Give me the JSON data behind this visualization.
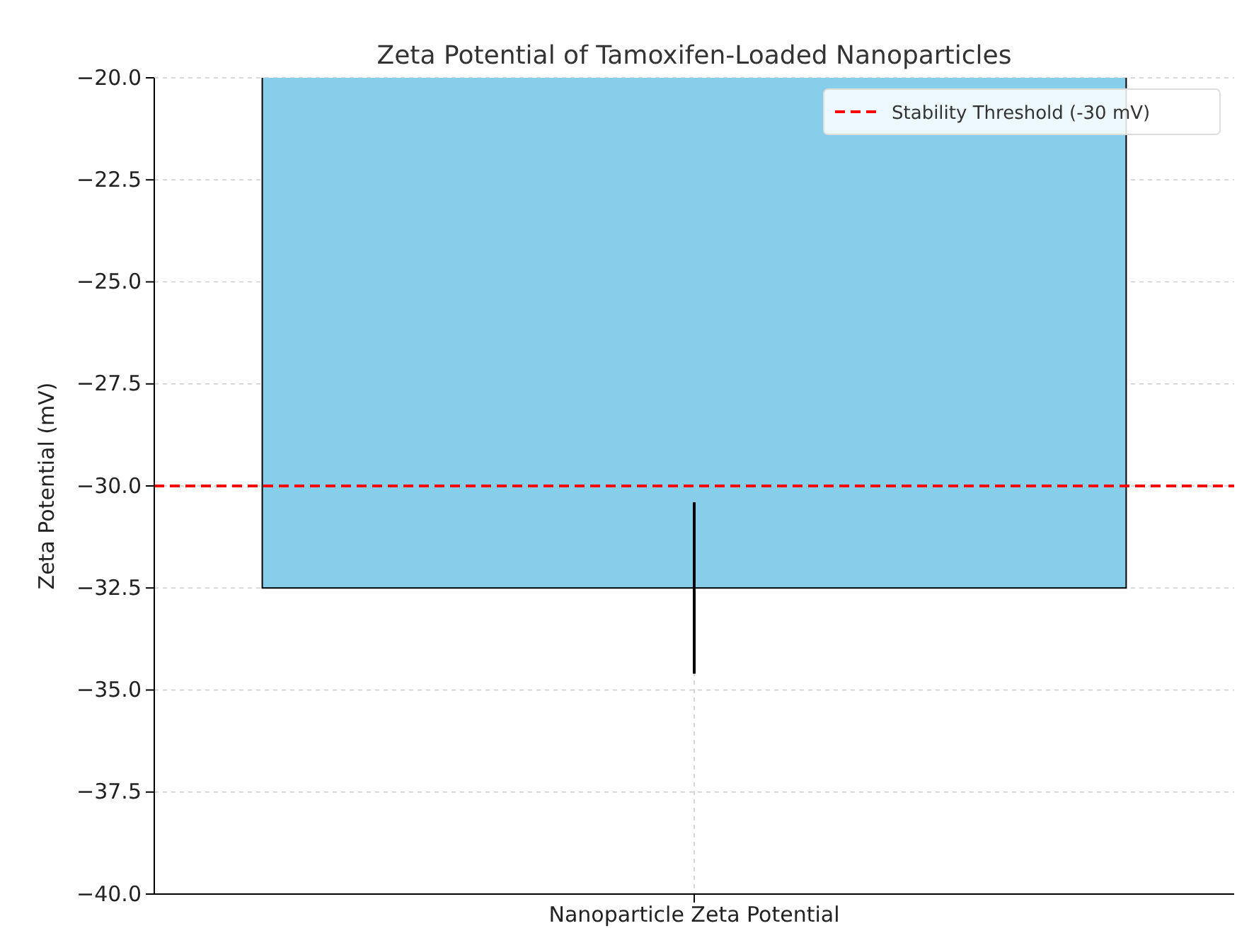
{
  "chart_data": {
    "type": "bar",
    "title": "Zeta Potential of Tamoxifen-Loaded Nanoparticles",
    "ylabel": "Zeta Potential (mV)",
    "categories": [
      "Nanoparticle Zeta Potential"
    ],
    "values": [
      -32.5
    ],
    "errors": [
      2.1
    ],
    "color": "#87ceeb",
    "ylim": [
      -40,
      -20
    ],
    "yticks": [
      {
        "value": -40,
        "label": "−40.0"
      },
      {
        "value": -37.5,
        "label": "−37.5"
      },
      {
        "value": -35,
        "label": "−35.0"
      },
      {
        "value": -32.5,
        "label": "−32.5"
      },
      {
        "value": -30,
        "label": "−30.0"
      },
      {
        "value": -27.5,
        "label": "−27.5"
      },
      {
        "value": -25,
        "label": "−25.0"
      },
      {
        "value": -22.5,
        "label": "−22.5"
      },
      {
        "value": -20,
        "label": "−20.0"
      }
    ],
    "ref_lines": [
      {
        "axis": "y",
        "value": -30,
        "label": "Stability Threshold (-30 mV)",
        "color": "#ff0000",
        "line_style": "dashed"
      }
    ],
    "grid": true,
    "legend": "top right"
  }
}
